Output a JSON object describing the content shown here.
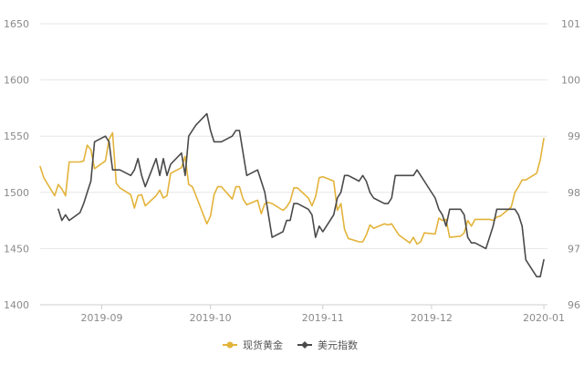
{
  "chart_data": {
    "type": "line",
    "x_ticks": [
      "2019-09",
      "2019-10",
      "2019-11",
      "2019-12",
      "2020-01"
    ],
    "y_left": {
      "ticks": [
        1400,
        1450,
        1500,
        1550,
        1600,
        1650
      ],
      "range": [
        1400,
        1650
      ]
    },
    "y_right": {
      "ticks": [
        96,
        97,
        98,
        99,
        100,
        101
      ],
      "range": [
        96,
        101
      ]
    },
    "x_range": [
      "2019-08-15",
      "2020-01-02"
    ],
    "grid": true,
    "legend_position": "bottom-center",
    "series": [
      {
        "name": "现货黄金",
        "axis": "left",
        "color": "#e3b33a",
        "marker": "circle",
        "points": [
          [
            "2019-08-15",
            1523
          ],
          [
            "2019-08-16",
            1513
          ],
          [
            "2019-08-19",
            1497
          ],
          [
            "2019-08-20",
            1507
          ],
          [
            "2019-08-21",
            1503
          ],
          [
            "2019-08-22",
            1497
          ],
          [
            "2019-08-23",
            1527
          ],
          [
            "2019-08-26",
            1527
          ],
          [
            "2019-08-27",
            1528
          ],
          [
            "2019-08-28",
            1542
          ],
          [
            "2019-08-29",
            1538
          ],
          [
            "2019-08-30",
            1521
          ],
          [
            "2019-09-02",
            1528
          ],
          [
            "2019-09-03",
            1547
          ],
          [
            "2019-09-04",
            1553
          ],
          [
            "2019-09-05",
            1508
          ],
          [
            "2019-09-06",
            1504
          ],
          [
            "2019-09-09",
            1498
          ],
          [
            "2019-09-10",
            1486
          ],
          [
            "2019-09-11",
            1497
          ],
          [
            "2019-09-12",
            1498
          ],
          [
            "2019-09-13",
            1488
          ],
          [
            "2019-09-16",
            1497
          ],
          [
            "2019-09-17",
            1502
          ],
          [
            "2019-09-18",
            1495
          ],
          [
            "2019-09-19",
            1497
          ],
          [
            "2019-09-20",
            1517
          ],
          [
            "2019-09-23",
            1522
          ],
          [
            "2019-09-24",
            1532
          ],
          [
            "2019-09-25",
            1507
          ],
          [
            "2019-09-26",
            1505
          ],
          [
            "2019-09-27",
            1497
          ],
          [
            "2019-09-30",
            1472
          ],
          [
            "2019-10-01",
            1479
          ],
          [
            "2019-10-02",
            1498
          ],
          [
            "2019-10-03",
            1505
          ],
          [
            "2019-10-04",
            1505
          ],
          [
            "2019-10-07",
            1494
          ],
          [
            "2019-10-08",
            1505
          ],
          [
            "2019-10-09",
            1505
          ],
          [
            "2019-10-10",
            1494
          ],
          [
            "2019-10-11",
            1489
          ],
          [
            "2019-10-14",
            1493
          ],
          [
            "2019-10-15",
            1481
          ],
          [
            "2019-10-16",
            1490
          ],
          [
            "2019-10-17",
            1491
          ],
          [
            "2019-10-18",
            1490
          ],
          [
            "2019-10-21",
            1484
          ],
          [
            "2019-10-22",
            1487
          ],
          [
            "2019-10-23",
            1492
          ],
          [
            "2019-10-24",
            1504
          ],
          [
            "2019-10-25",
            1504
          ],
          [
            "2019-10-28",
            1495
          ],
          [
            "2019-10-29",
            1488
          ],
          [
            "2019-10-30",
            1496
          ],
          [
            "2019-10-31",
            1513
          ],
          [
            "2019-11-01",
            1514
          ],
          [
            "2019-11-04",
            1510
          ],
          [
            "2019-11-05",
            1484
          ],
          [
            "2019-11-06",
            1490
          ],
          [
            "2019-11-07",
            1467
          ],
          [
            "2019-11-08",
            1459
          ],
          [
            "2019-11-11",
            1456
          ],
          [
            "2019-11-12",
            1456
          ],
          [
            "2019-11-13",
            1462
          ],
          [
            "2019-11-14",
            1471
          ],
          [
            "2019-11-15",
            1468
          ],
          [
            "2019-11-18",
            1472
          ],
          [
            "2019-11-19",
            1471
          ],
          [
            "2019-11-20",
            1472
          ],
          [
            "2019-11-21",
            1467
          ],
          [
            "2019-11-22",
            1462
          ],
          [
            "2019-11-25",
            1455
          ],
          [
            "2019-11-26",
            1460
          ],
          [
            "2019-11-27",
            1454
          ],
          [
            "2019-11-28",
            1456
          ],
          [
            "2019-11-29",
            1464
          ],
          [
            "2019-12-02",
            1463
          ],
          [
            "2019-12-03",
            1477
          ],
          [
            "2019-12-04",
            1475
          ],
          [
            "2019-12-05",
            1476
          ],
          [
            "2019-12-06",
            1460
          ],
          [
            "2019-12-09",
            1461
          ],
          [
            "2019-12-10",
            1464
          ],
          [
            "2019-12-11",
            1475
          ],
          [
            "2019-12-12",
            1470
          ],
          [
            "2019-12-13",
            1476
          ],
          [
            "2019-12-16",
            1476
          ],
          [
            "2019-12-17",
            1476
          ],
          [
            "2019-12-18",
            1475
          ],
          [
            "2019-12-19",
            1478
          ],
          [
            "2019-12-20",
            1479
          ],
          [
            "2019-12-23",
            1487
          ],
          [
            "2019-12-24",
            1500
          ],
          [
            "2019-12-25",
            1505
          ],
          [
            "2019-12-26",
            1511
          ],
          [
            "2019-12-27",
            1511
          ],
          [
            "2019-12-30",
            1517
          ],
          [
            "2019-12-31",
            1529
          ],
          [
            "2020-01-01",
            1548
          ]
        ]
      },
      {
        "name": "美元指数",
        "axis": "right",
        "color": "#4a4a4a",
        "marker": "diamond",
        "points": [
          [
            "2019-08-20",
            97.7
          ],
          [
            "2019-08-21",
            97.5
          ],
          [
            "2019-08-22",
            97.6
          ],
          [
            "2019-08-23",
            97.5
          ],
          [
            "2019-08-26",
            97.64
          ],
          [
            "2019-08-27",
            97.8
          ],
          [
            "2019-08-28",
            98.0
          ],
          [
            "2019-08-29",
            98.2
          ],
          [
            "2019-08-30",
            98.9
          ],
          [
            "2019-09-02",
            99.0
          ],
          [
            "2019-09-03",
            98.9
          ],
          [
            "2019-09-04",
            98.4
          ],
          [
            "2019-09-05",
            98.4
          ],
          [
            "2019-09-06",
            98.4
          ],
          [
            "2019-09-09",
            98.3
          ],
          [
            "2019-09-10",
            98.4
          ],
          [
            "2019-09-11",
            98.6
          ],
          [
            "2019-09-12",
            98.3
          ],
          [
            "2019-09-13",
            98.1
          ],
          [
            "2019-09-16",
            98.6
          ],
          [
            "2019-09-17",
            98.3
          ],
          [
            "2019-09-18",
            98.6
          ],
          [
            "2019-09-19",
            98.3
          ],
          [
            "2019-09-20",
            98.5
          ],
          [
            "2019-09-23",
            98.7
          ],
          [
            "2019-09-24",
            98.3
          ],
          [
            "2019-09-25",
            99.0
          ],
          [
            "2019-09-26",
            99.1
          ],
          [
            "2019-09-27",
            99.2
          ],
          [
            "2019-09-30",
            99.4
          ],
          [
            "2019-10-01",
            99.1
          ],
          [
            "2019-10-02",
            98.9
          ],
          [
            "2019-10-03",
            98.9
          ],
          [
            "2019-10-04",
            98.9
          ],
          [
            "2019-10-07",
            99.0
          ],
          [
            "2019-10-08",
            99.1
          ],
          [
            "2019-10-09",
            99.1
          ],
          [
            "2019-10-10",
            98.7
          ],
          [
            "2019-10-11",
            98.3
          ],
          [
            "2019-10-14",
            98.4
          ],
          [
            "2019-10-15",
            98.2
          ],
          [
            "2019-10-16",
            98.0
          ],
          [
            "2019-10-17",
            97.6
          ],
          [
            "2019-10-18",
            97.2
          ],
          [
            "2019-10-21",
            97.3
          ],
          [
            "2019-10-22",
            97.5
          ],
          [
            "2019-10-23",
            97.5
          ],
          [
            "2019-10-24",
            97.8
          ],
          [
            "2019-10-25",
            97.8
          ],
          [
            "2019-10-28",
            97.7
          ],
          [
            "2019-10-29",
            97.6
          ],
          [
            "2019-10-30",
            97.2
          ],
          [
            "2019-10-31",
            97.4
          ],
          [
            "2019-11-01",
            97.3
          ],
          [
            "2019-11-04",
            97.6
          ],
          [
            "2019-11-05",
            97.9
          ],
          [
            "2019-11-06",
            98.0
          ],
          [
            "2019-11-07",
            98.3
          ],
          [
            "2019-11-08",
            98.3
          ],
          [
            "2019-11-11",
            98.2
          ],
          [
            "2019-11-12",
            98.3
          ],
          [
            "2019-11-13",
            98.2
          ],
          [
            "2019-11-14",
            98.0
          ],
          [
            "2019-11-15",
            97.9
          ],
          [
            "2019-11-18",
            97.8
          ],
          [
            "2019-11-19",
            97.8
          ],
          [
            "2019-11-20",
            97.9
          ],
          [
            "2019-11-21",
            98.3
          ],
          [
            "2019-11-22",
            98.3
          ],
          [
            "2019-11-25",
            98.3
          ],
          [
            "2019-11-26",
            98.3
          ],
          [
            "2019-11-27",
            98.4
          ],
          [
            "2019-11-28",
            98.3
          ],
          [
            "2019-11-29",
            98.2
          ],
          [
            "2019-12-02",
            97.9
          ],
          [
            "2019-12-03",
            97.7
          ],
          [
            "2019-12-04",
            97.6
          ],
          [
            "2019-12-05",
            97.4
          ],
          [
            "2019-12-06",
            97.7
          ],
          [
            "2019-12-09",
            97.7
          ],
          [
            "2019-12-10",
            97.6
          ],
          [
            "2019-12-11",
            97.2
          ],
          [
            "2019-12-12",
            97.1
          ],
          [
            "2019-12-13",
            97.1
          ],
          [
            "2019-12-16",
            97.0
          ],
          [
            "2019-12-17",
            97.2
          ],
          [
            "2019-12-18",
            97.4
          ],
          [
            "2019-12-19",
            97.7
          ],
          [
            "2019-12-20",
            97.7
          ],
          [
            "2019-12-23",
            97.7
          ],
          [
            "2019-12-24",
            97.7
          ],
          [
            "2019-12-25",
            97.6
          ],
          [
            "2019-12-26",
            97.4
          ],
          [
            "2019-12-27",
            96.8
          ],
          [
            "2019-12-30",
            96.5
          ],
          [
            "2019-12-31",
            96.5
          ],
          [
            "2020-01-01",
            96.8
          ]
        ]
      }
    ]
  }
}
